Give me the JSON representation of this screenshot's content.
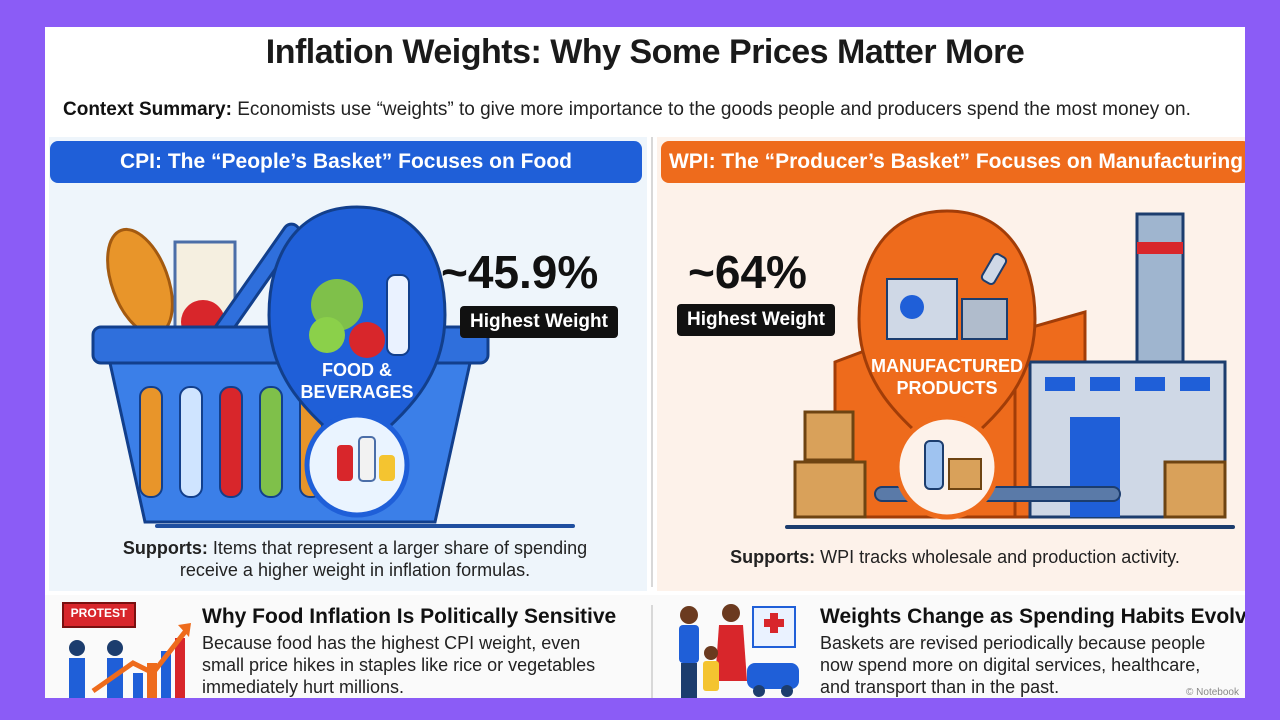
{
  "title": "Inflation Weights: Why Some Prices Matter More",
  "context": {
    "label": "Context Summary:",
    "text": "Economists use “weights” to give more importance to the goods people and producers spend the most money on."
  },
  "cpi": {
    "header": "CPI: The “People’s Basket” Focuses on Food",
    "percent": "~45.9%",
    "badge": "Highest Weight",
    "category_line1": "FOOD &",
    "category_line2": "BEVERAGES",
    "supports_label": "Supports:",
    "supports_line1": "Items that represent a larger share of spending",
    "supports_line2": "receive a higher weight in inflation formulas."
  },
  "wpi": {
    "header": "WPI: The “Producer’s Basket” Focuses on Manufacturing",
    "percent": "~64%",
    "badge": "Highest Weight",
    "category_line1": "MANUFACTURED",
    "category_line2": "PRODUCTS",
    "supports_label": "Supports:",
    "supports_text": "WPI tracks wholesale and production activity."
  },
  "bottom_left": {
    "protest_sign": "PROTEST",
    "title": "Why Food Inflation Is Politically Sensitive",
    "line1": "Because food has the highest CPI weight, even",
    "line2": "small price hikes in staples like rice or vegetables",
    "line3": "immediately hurt millions."
  },
  "bottom_right": {
    "title": "Weights Change as Spending Habits Evolve",
    "line1": "Baskets are revised periodically because people",
    "line2": "now spend more on digital services, healthcare,",
    "line3": "and transport than in the past.",
    "credit": "© Notebook"
  },
  "colors": {
    "cpi_accent": "#1f5fd8",
    "wpi_accent": "#ee6b1c",
    "frame": "#8b5cf6"
  }
}
